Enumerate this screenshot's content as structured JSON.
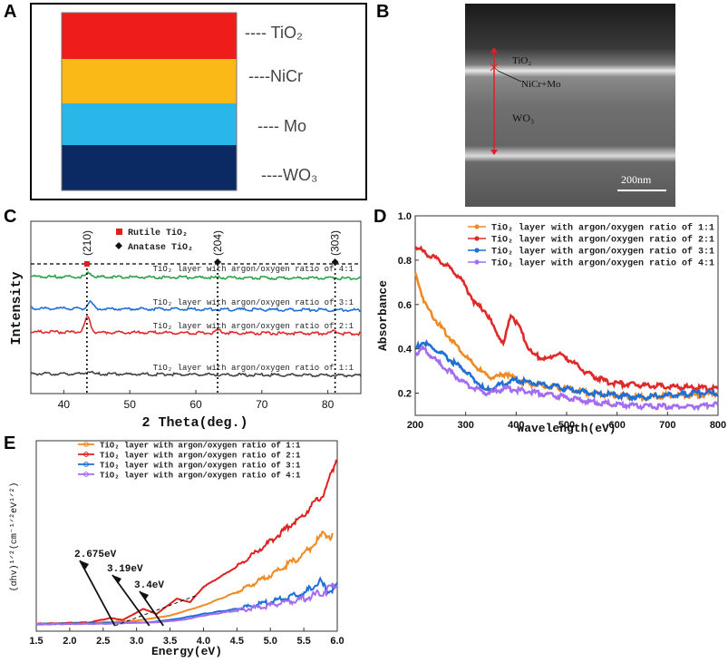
{
  "panels": {
    "a": "A",
    "b": "B",
    "c": "C",
    "d": "D",
    "e": "E"
  },
  "panel_a": {
    "layers": [
      {
        "name": "TiO₂",
        "color": "#ef1c1c"
      },
      {
        "name": "NiCr",
        "color": "#fbb917"
      },
      {
        "name": "Mo",
        "color": "#29b6e8"
      },
      {
        "name": "WO₃",
        "color": "#0b2a63"
      }
    ],
    "label_prefix": "----"
  },
  "panel_b": {
    "labels": {
      "tio2": "TiO₂",
      "nicr": "NiCr+Mo",
      "wo3": "WO₃",
      "scale": "200nm"
    },
    "marker_color": "#e02020"
  },
  "chart_data": [
    {
      "id": "C",
      "type": "line",
      "xlabel": "2 Theta(deg.)",
      "ylabel": "Intensity",
      "xlim": [
        35,
        85
      ],
      "xticks": [
        40,
        50,
        60,
        70,
        80
      ],
      "legend": [
        {
          "label": "Rutile TiO₂",
          "marker": "square",
          "color": "#e02020"
        },
        {
          "label": "Anatase TiO₂",
          "marker": "diamond",
          "color": "#111111"
        }
      ],
      "peaks": [
        {
          "label": "(210)",
          "x": 43.5,
          "marker": "rutile"
        },
        {
          "label": "(204)",
          "x": 63.3,
          "marker": "anatase"
        },
        {
          "label": "(303)",
          "x": 81.1,
          "marker": "anatase"
        }
      ],
      "series": [
        {
          "name": "TiO₂ layer with argon/oxygen ratio of 4:1",
          "color": "#2ca24a",
          "offset": 3,
          "peaks": [
            [
              43.8,
              0.15
            ]
          ]
        },
        {
          "name": "TiO₂ layer with argon/oxygen ratio of 3:1",
          "color": "#1f6fd6",
          "offset": 2,
          "peaks": [
            [
              44.0,
              0.25
            ]
          ]
        },
        {
          "name": "TiO₂ layer with argon/oxygen ratio of 2:1",
          "color": "#e02a2a",
          "offset": 1,
          "peaks": [
            [
              43.6,
              0.55
            ],
            [
              63.5,
              0.1
            ],
            [
              81.0,
              0.1
            ]
          ]
        },
        {
          "name": "TiO₂ layer with argon/oxygen ratio of 1:1",
          "color": "#444444",
          "offset": 0,
          "peaks": [
            [
              43.8,
              0.08
            ]
          ]
        }
      ]
    },
    {
      "id": "D",
      "type": "line",
      "xlabel": "Wavelength(eV)",
      "ylabel": "Absorbance",
      "xlim": [
        200,
        800
      ],
      "ylim": [
        0.1,
        1.0
      ],
      "xticks": [
        200,
        300,
        400,
        500,
        600,
        700,
        800
      ],
      "yticks": [
        "0.2",
        "0.4",
        "0.6",
        "0.8",
        "1.0"
      ],
      "ytick_values": [
        0.2,
        0.4,
        0.6,
        0.8,
        1.0
      ],
      "series": [
        {
          "name": "TiO₂ layer with argon/oxygen ratio of 1:1",
          "color": "#f08a24",
          "marker": "circle",
          "points": [
            [
              200,
              0.74
            ],
            [
              220,
              0.6
            ],
            [
              250,
              0.5
            ],
            [
              280,
              0.42
            ],
            [
              310,
              0.34
            ],
            [
              340,
              0.28
            ],
            [
              360,
              0.27
            ],
            [
              380,
              0.29
            ],
            [
              400,
              0.26
            ],
            [
              450,
              0.23
            ],
            [
              500,
              0.22
            ],
            [
              550,
              0.2
            ],
            [
              600,
              0.19
            ],
            [
              650,
              0.18
            ],
            [
              700,
              0.19
            ],
            [
              750,
              0.19
            ],
            [
              800,
              0.2
            ]
          ]
        },
        {
          "name": "TiO₂ layer with argon/oxygen ratio of 2:1",
          "color": "#e02a2a",
          "marker": "circle",
          "points": [
            [
              200,
              0.86
            ],
            [
              230,
              0.82
            ],
            [
              260,
              0.78
            ],
            [
              290,
              0.72
            ],
            [
              320,
              0.6
            ],
            [
              340,
              0.57
            ],
            [
              355,
              0.5
            ],
            [
              375,
              0.42
            ],
            [
              390,
              0.56
            ],
            [
              405,
              0.5
            ],
            [
              430,
              0.38
            ],
            [
              460,
              0.35
            ],
            [
              480,
              0.38
            ],
            [
              500,
              0.36
            ],
            [
              540,
              0.29
            ],
            [
              580,
              0.25
            ],
            [
              620,
              0.24
            ],
            [
              700,
              0.23
            ],
            [
              800,
              0.22
            ]
          ]
        },
        {
          "name": "TiO₂ layer with argon/oxygen ratio of 3:1",
          "color": "#1f6fd6",
          "marker": "triangle",
          "points": [
            [
              200,
              0.4
            ],
            [
              215,
              0.43
            ],
            [
              250,
              0.38
            ],
            [
              300,
              0.3
            ],
            [
              340,
              0.21
            ],
            [
              370,
              0.24
            ],
            [
              400,
              0.26
            ],
            [
              450,
              0.24
            ],
            [
              500,
              0.22
            ],
            [
              550,
              0.2
            ],
            [
              600,
              0.19
            ],
            [
              650,
              0.18
            ],
            [
              700,
              0.19
            ],
            [
              750,
              0.2
            ],
            [
              800,
              0.2
            ]
          ]
        },
        {
          "name": "TiO₂ layer with argon/oxygen ratio of 4:1",
          "color": "#a66cf0",
          "marker": "triangle-down",
          "points": [
            [
              200,
              0.38
            ],
            [
              215,
              0.4
            ],
            [
              250,
              0.33
            ],
            [
              300,
              0.24
            ],
            [
              340,
              0.2
            ],
            [
              380,
              0.22
            ],
            [
              420,
              0.21
            ],
            [
              500,
              0.18
            ],
            [
              550,
              0.16
            ],
            [
              600,
              0.15
            ],
            [
              650,
              0.14
            ],
            [
              700,
              0.14
            ],
            [
              750,
              0.14
            ],
            [
              800,
              0.15
            ]
          ]
        }
      ]
    },
    {
      "id": "E",
      "type": "line",
      "xlabel": "Energy(eV)",
      "ylabel": "(αhv)¹ᐟ²(cm⁻¹ᐟ²eV¹ᐟ²)",
      "xlim": [
        1.5,
        6.0
      ],
      "ylim": [
        0,
        10
      ],
      "xticks": [
        "1.5",
        "2.0",
        "2.5",
        "3.0",
        "3.5",
        "4.0",
        "4.5",
        "5.0",
        "5.5",
        "6.0"
      ],
      "xtick_values": [
        1.5,
        2.0,
        2.5,
        3.0,
        3.5,
        4.0,
        4.5,
        5.0,
        5.5,
        6.0
      ],
      "annotations": [
        {
          "text": "2.675eV",
          "x": 2.675
        },
        {
          "text": "3.19eV",
          "x": 3.19
        },
        {
          "text": "3.4eV",
          "x": 3.4
        }
      ],
      "series": [
        {
          "name": "TiO₂ layer with argon/oxygen ratio of 1:1",
          "color": "#f08a24",
          "marker": "circle",
          "points": [
            [
              1.5,
              0.1
            ],
            [
              2.5,
              0.2
            ],
            [
              3.0,
              0.3
            ],
            [
              3.5,
              0.6
            ],
            [
              4.0,
              1.2
            ],
            [
              4.5,
              2.0
            ],
            [
              5.0,
              3.0
            ],
            [
              5.5,
              4.2
            ],
            [
              5.8,
              5.5
            ],
            [
              5.95,
              5.2
            ]
          ]
        },
        {
          "name": "TiO₂ layer with argon/oxygen ratio of 2:1",
          "color": "#e02020",
          "marker": "line",
          "points": [
            [
              1.5,
              0.1
            ],
            [
              2.3,
              0.2
            ],
            [
              2.6,
              0.45
            ],
            [
              2.8,
              0.35
            ],
            [
              3.1,
              1.0
            ],
            [
              3.3,
              0.7
            ],
            [
              3.6,
              1.6
            ],
            [
              3.8,
              1.4
            ],
            [
              4.0,
              2.3
            ],
            [
              4.5,
              3.5
            ],
            [
              5.0,
              5.0
            ],
            [
              5.5,
              6.6
            ],
            [
              5.8,
              7.8
            ],
            [
              6.0,
              10.0
            ]
          ]
        },
        {
          "name": "TiO₂ layer with argon/oxygen ratio of 3:1",
          "color": "#1f6fd6",
          "marker": "triangle",
          "points": [
            [
              1.5,
              0.1
            ],
            [
              2.5,
              0.15
            ],
            [
              3.2,
              0.2
            ],
            [
              3.6,
              0.4
            ],
            [
              4.0,
              0.7
            ],
            [
              4.5,
              1.0
            ],
            [
              5.0,
              1.4
            ],
            [
              5.5,
              1.9
            ],
            [
              5.75,
              2.6
            ],
            [
              5.85,
              2.0
            ],
            [
              6.0,
              2.4
            ]
          ]
        },
        {
          "name": "TiO₂ layer with argon/oxygen ratio of 4:1",
          "color": "#a66cf0",
          "marker": "triangle-down",
          "points": [
            [
              1.5,
              0.1
            ],
            [
              2.5,
              0.12
            ],
            [
              3.3,
              0.2
            ],
            [
              3.7,
              0.35
            ],
            [
              4.0,
              0.6
            ],
            [
              4.5,
              0.9
            ],
            [
              5.0,
              1.2
            ],
            [
              5.5,
              1.6
            ],
            [
              5.8,
              2.0
            ],
            [
              6.0,
              2.5
            ]
          ]
        }
      ]
    }
  ]
}
